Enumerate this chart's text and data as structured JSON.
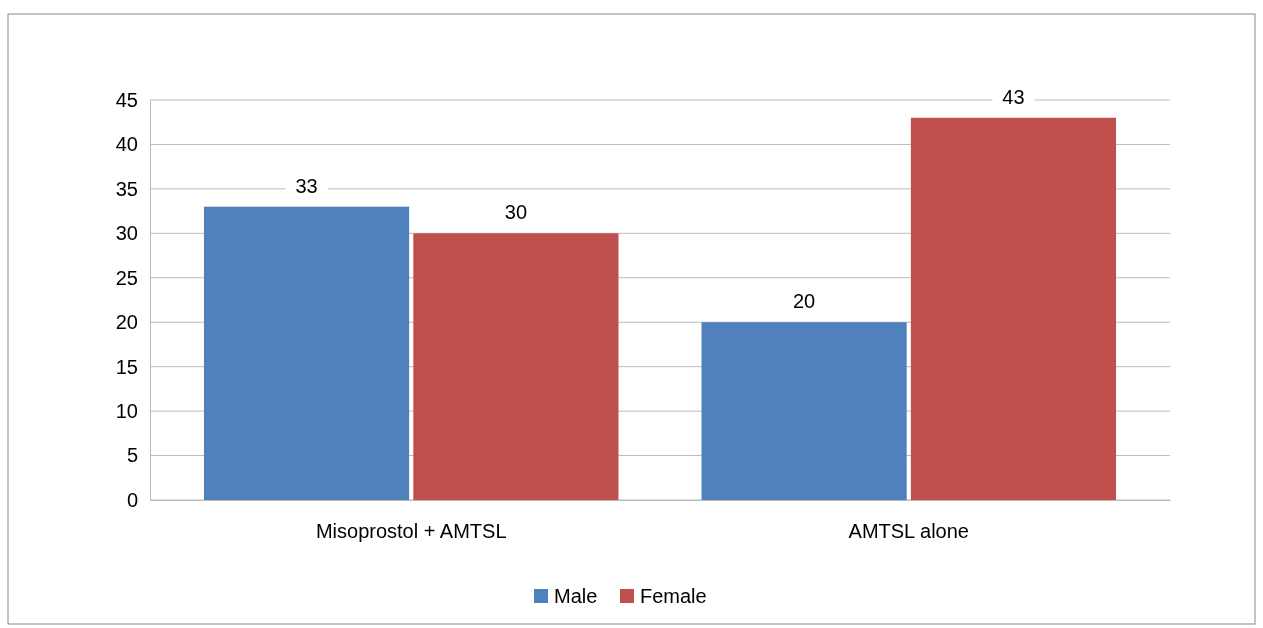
{
  "chart_data": {
    "type": "bar",
    "categories": [
      "Misoprostol + AMTSL",
      "AMTSL alone"
    ],
    "series": [
      {
        "name": "Male",
        "color": "#4f81bd",
        "values": [
          33,
          20
        ]
      },
      {
        "name": "Female",
        "color": "#c0504d",
        "values": [
          30,
          43
        ]
      }
    ],
    "ylim": [
      0,
      45
    ],
    "yticks": [
      0,
      5,
      10,
      15,
      20,
      25,
      30,
      35,
      40,
      45
    ],
    "grid": "y",
    "legend": "bottom",
    "data_labels": true
  }
}
